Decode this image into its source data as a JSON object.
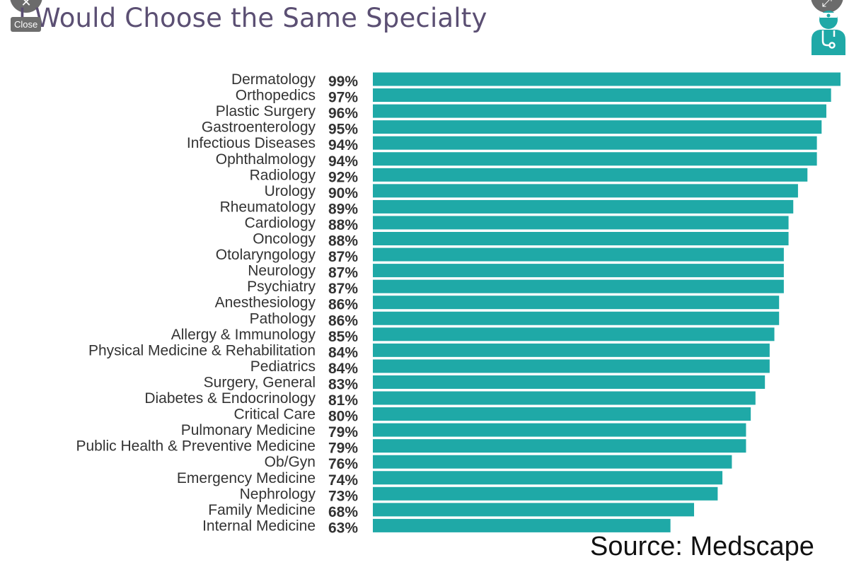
{
  "overlay": {
    "close_label": "Close"
  },
  "source_text": "Source: Medscape",
  "colors": {
    "bar": "#1fa9a7",
    "title": "#5b4f73",
    "icon": "#1fa9a7"
  },
  "icons": {
    "corner_left": "close-x-icon",
    "corner_right": "expand-icon",
    "badge": "doctor-icon"
  },
  "chart_data": {
    "type": "bar",
    "orientation": "horizontal",
    "title": "I Would Choose the Same Specialty",
    "unit": "%",
    "xlim": [
      0,
      99
    ],
    "grid": false,
    "categories": [
      "Dermatology",
      "Orthopedics",
      "Plastic Surgery",
      "Gastroenterology",
      "Infectious Diseases",
      "Ophthalmology",
      "Radiology",
      "Urology",
      "Rheumatology",
      "Cardiology",
      "Oncology",
      "Otolaryngology",
      "Neurology",
      "Psychiatry",
      "Anesthesiology",
      "Pathology",
      "Allergy & Immunology",
      "Physical Medicine & Rehabilitation",
      "Pediatrics",
      "Surgery, General",
      "Diabetes & Endocrinology",
      "Critical Care",
      "Pulmonary Medicine",
      "Public Health & Preventive Medicine",
      "Ob/Gyn",
      "Emergency Medicine",
      "Nephrology",
      "Family Medicine",
      "Internal Medicine"
    ],
    "values": [
      99,
      97,
      96,
      95,
      94,
      94,
      92,
      90,
      89,
      88,
      88,
      87,
      87,
      87,
      86,
      86,
      85,
      84,
      84,
      83,
      81,
      80,
      79,
      79,
      76,
      74,
      73,
      68,
      63
    ],
    "value_labels": [
      "99%",
      "97%",
      "96%",
      "95%",
      "94%",
      "94%",
      "92%",
      "90%",
      "89%",
      "88%",
      "88%",
      "87%",
      "87%",
      "87%",
      "86%",
      "86%",
      "85%",
      "84%",
      "84%",
      "83%",
      "81%",
      "80%",
      "79%",
      "79%",
      "76%",
      "74%",
      "73%",
      "68%",
      "63%"
    ]
  }
}
